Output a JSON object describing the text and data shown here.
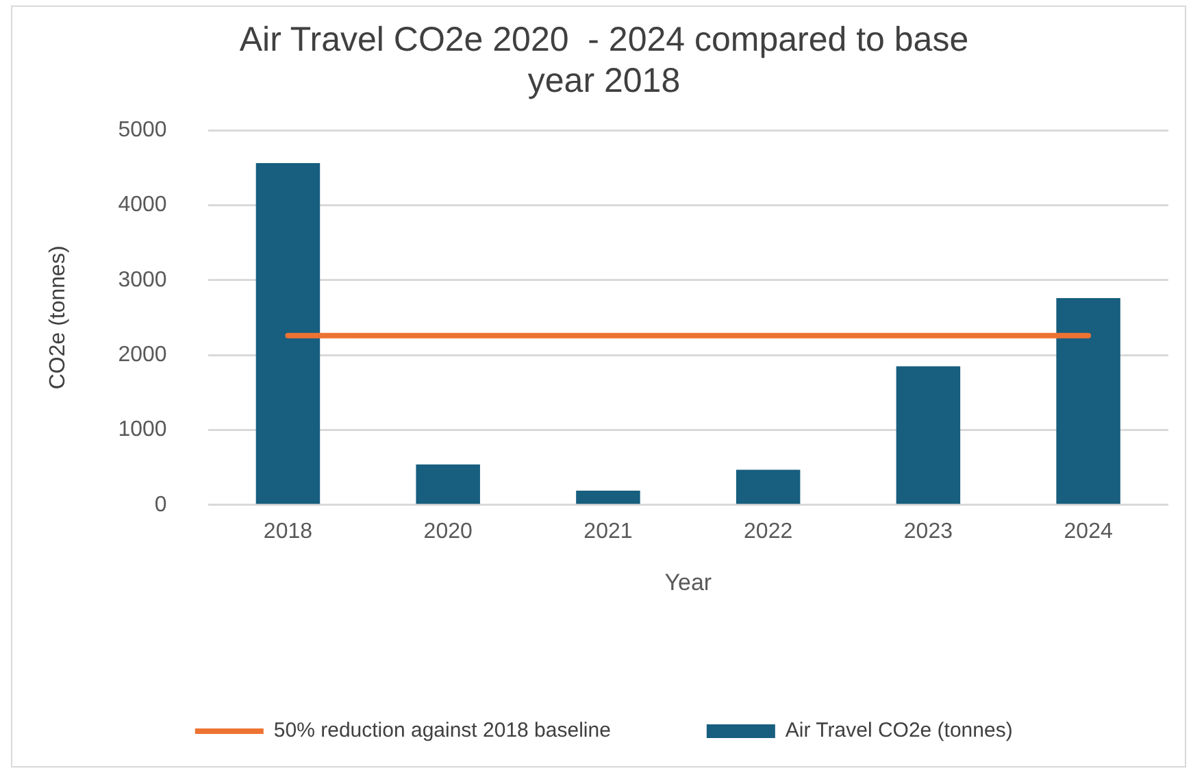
{
  "chart_data": {
    "type": "bar",
    "title": "Air Travel CO2e 2020  - 2024 compared to base year 2018",
    "xlabel": "Year",
    "ylabel": "CO2e (tonnes)",
    "categories": [
      "2018",
      "2020",
      "2021",
      "2022",
      "2023",
      "2024"
    ],
    "series": [
      {
        "name": "Air Travel CO2e (tonnes)",
        "color": "#175e7f",
        "values": [
          4560,
          540,
          190,
          470,
          1850,
          2760
        ]
      },
      {
        "name": "50% reduction against 2018 baseline",
        "type": "line",
        "color": "#ed7333",
        "values": [
          2260,
          2260,
          2260,
          2260,
          2260,
          2260
        ]
      }
    ],
    "ylim": [
      0,
      5000
    ],
    "yticks": [
      0,
      1000,
      2000,
      3000,
      4000,
      5000
    ],
    "grid": "y",
    "legend": "bottom",
    "marker": "none"
  }
}
